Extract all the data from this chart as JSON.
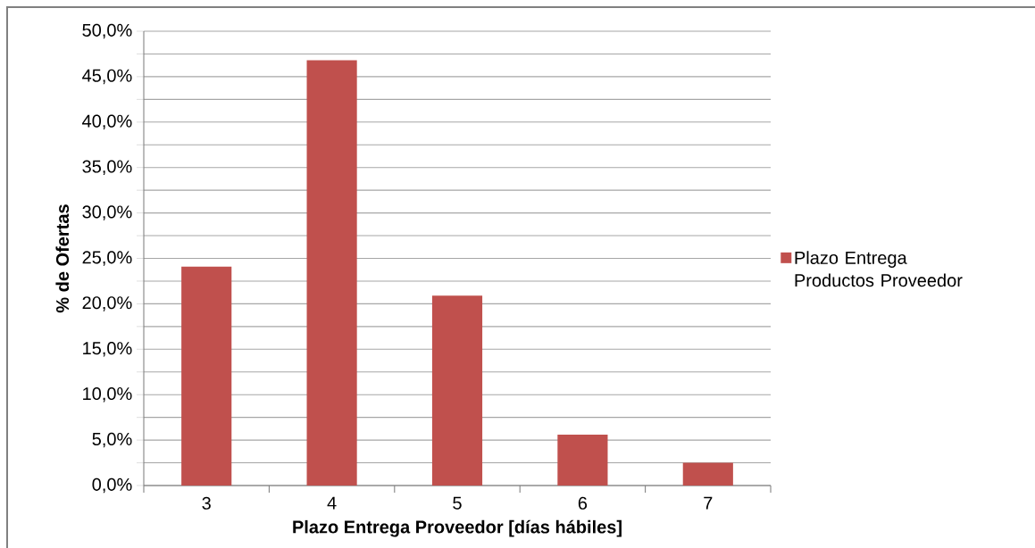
{
  "chart_data": {
    "type": "bar",
    "xlabel": "Plazo Entrega Proveedor [días hábiles]",
    "ylabel": "% de Ofertas",
    "categories": [
      "3",
      "4",
      "5",
      "6",
      "7"
    ],
    "series": [
      {
        "name": "Plazo Entrega Productos Proveedor",
        "color": "#c0504d",
        "values": [
          24.1,
          46.8,
          20.9,
          5.6,
          2.5
        ]
      }
    ],
    "ylim": [
      0,
      50
    ],
    "yticks": [
      {
        "value": 0,
        "label": "0,0%"
      },
      {
        "value": 2.5,
        "label": null
      },
      {
        "value": 5,
        "label": "5,0%"
      },
      {
        "value": 7.5,
        "label": null
      },
      {
        "value": 10,
        "label": "10,0%"
      },
      {
        "value": 12.5,
        "label": null
      },
      {
        "value": 15,
        "label": "15,0%"
      },
      {
        "value": 17.5,
        "label": null
      },
      {
        "value": 20,
        "label": "20,0%"
      },
      {
        "value": 22.5,
        "label": null
      },
      {
        "value": 25,
        "label": "25,0%"
      },
      {
        "value": 27.5,
        "label": null
      },
      {
        "value": 30,
        "label": "30,0%"
      },
      {
        "value": 32.5,
        "label": null
      },
      {
        "value": 35,
        "label": "35,0%"
      },
      {
        "value": 37.5,
        "label": null
      },
      {
        "value": 40,
        "label": "40,0%"
      },
      {
        "value": 42.5,
        "label": null
      },
      {
        "value": 45,
        "label": "45,0%"
      },
      {
        "value": 47.5,
        "label": null
      },
      {
        "value": 50,
        "label": "50,0%"
      }
    ],
    "grid": "y",
    "legend": "right"
  }
}
